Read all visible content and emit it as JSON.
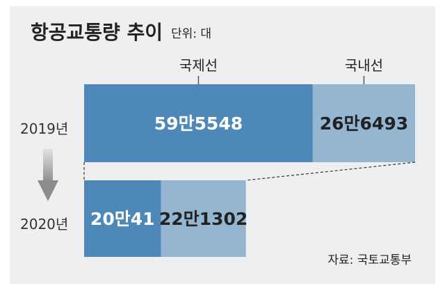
{
  "title": "항공교통량 추이",
  "unit_label": "단위: 대",
  "source": "자료: 국토교통부",
  "colors": {
    "international": "#4e88b8",
    "domestic": "#94b6d1",
    "background": "#efefef",
    "arrow": "#a3a3a3"
  },
  "chart_data": {
    "type": "bar",
    "orientation": "horizontal-stacked",
    "categories": [
      "2019년",
      "2020년"
    ],
    "series": [
      {
        "name": "국제선",
        "values": [
          595548,
          200041
        ],
        "labels": [
          "59만5548",
          "20만41"
        ]
      },
      {
        "name": "국내선",
        "values": [
          266493,
          221302
        ],
        "labels": [
          "26만6493",
          "22만1302"
        ]
      }
    ],
    "title": "항공교통량 추이",
    "unit": "단위: 대",
    "legend_position": "top",
    "grid": false
  }
}
